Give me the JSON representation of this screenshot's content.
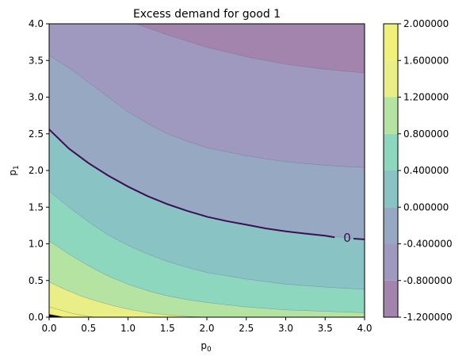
{
  "chart_data": {
    "type": "contour",
    "title": "Excess demand for good 1",
    "xlabel": "p",
    "xlabel_sub": "0",
    "ylabel": "p",
    "ylabel_sub": "1",
    "xlim": [
      0.0,
      4.0
    ],
    "ylim": [
      0.0,
      4.0
    ],
    "xticks": [
      "0.0",
      "0.5",
      "1.0",
      "1.5",
      "2.0",
      "2.5",
      "3.0",
      "3.5",
      "4.0"
    ],
    "yticks": [
      "0.0",
      "0.5",
      "1.0",
      "1.5",
      "2.0",
      "2.5",
      "3.0",
      "3.5",
      "4.0"
    ],
    "colorbar": {
      "levels": [
        -1.2,
        -0.8,
        -0.4,
        0.0,
        0.4,
        0.8,
        1.2,
        1.6,
        2.0
      ],
      "labels": [
        "2.000000",
        "1.600000",
        "1.200000",
        "0.800000",
        "0.400000",
        "0.000000",
        "-0.400000",
        "-0.800000",
        "-1.200000"
      ],
      "colors": [
        "#a284ac",
        "#9f99bf",
        "#97a9c2",
        "#8ac3c4",
        "#8dd7bf",
        "#b5e3a2",
        "#e9ee86",
        "#f0f07a"
      ]
    },
    "zero_contour": {
      "label": "0",
      "color": "#3b0f54",
      "points": [
        [
          0.0,
          2.56
        ],
        [
          0.25,
          2.3
        ],
        [
          0.5,
          2.1
        ],
        [
          0.75,
          1.93
        ],
        [
          1.0,
          1.78
        ],
        [
          1.25,
          1.65
        ],
        [
          1.5,
          1.54
        ],
        [
          1.75,
          1.45
        ],
        [
          2.0,
          1.37
        ],
        [
          2.25,
          1.31
        ],
        [
          2.5,
          1.26
        ],
        [
          2.75,
          1.21
        ],
        [
          3.0,
          1.17
        ],
        [
          3.25,
          1.14
        ],
        [
          3.5,
          1.11
        ],
        [
          3.62,
          1.09
        ]
      ],
      "tail": [
        [
          3.86,
          1.07
        ],
        [
          4.0,
          1.06
        ]
      ]
    },
    "contours": [
      {
        "range": [
          -1.2,
          -0.8
        ],
        "points": [
          [
            1.1,
            4.0
          ],
          [
            1.5,
            3.85
          ],
          [
            2.0,
            3.68
          ],
          [
            2.5,
            3.55
          ],
          [
            3.0,
            3.45
          ],
          [
            3.5,
            3.38
          ],
          [
            4.0,
            3.33
          ]
        ]
      },
      {
        "range": [
          -0.8,
          -0.4
        ],
        "points": [
          [
            0.0,
            3.57
          ],
          [
            0.25,
            3.4
          ],
          [
            0.5,
            3.2
          ],
          [
            0.75,
            3.0
          ],
          [
            1.0,
            2.8
          ],
          [
            1.25,
            2.64
          ],
          [
            1.5,
            2.5
          ],
          [
            1.75,
            2.4
          ],
          [
            2.0,
            2.31
          ],
          [
            2.5,
            2.2
          ],
          [
            3.0,
            2.12
          ],
          [
            3.5,
            2.07
          ],
          [
            4.0,
            2.04
          ]
        ]
      },
      {
        "range": [
          -0.4,
          0.0
        ],
        "points": [
          [
            0.0,
            2.56
          ],
          [
            0.25,
            2.3
          ],
          [
            0.5,
            2.1
          ],
          [
            0.75,
            1.93
          ],
          [
            1.0,
            1.78
          ],
          [
            1.25,
            1.65
          ],
          [
            1.5,
            1.54
          ],
          [
            1.75,
            1.45
          ],
          [
            2.0,
            1.37
          ],
          [
            2.25,
            1.31
          ],
          [
            2.5,
            1.26
          ],
          [
            2.75,
            1.21
          ],
          [
            3.0,
            1.17
          ],
          [
            3.25,
            1.14
          ],
          [
            3.5,
            1.11
          ],
          [
            4.0,
            1.06
          ]
        ]
      },
      {
        "range": [
          0.0,
          0.4
        ],
        "points": [
          [
            0.0,
            1.72
          ],
          [
            0.25,
            1.5
          ],
          [
            0.5,
            1.3
          ],
          [
            0.75,
            1.12
          ],
          [
            1.0,
            0.98
          ],
          [
            1.25,
            0.86
          ],
          [
            1.5,
            0.76
          ],
          [
            1.75,
            0.68
          ],
          [
            2.0,
            0.61
          ],
          [
            2.5,
            0.52
          ],
          [
            3.0,
            0.45
          ],
          [
            3.5,
            0.41
          ],
          [
            4.0,
            0.38
          ]
        ]
      },
      {
        "range": [
          0.4,
          0.8
        ],
        "points": [
          [
            0.0,
            1.04
          ],
          [
            0.25,
            0.86
          ],
          [
            0.5,
            0.7
          ],
          [
            0.75,
            0.56
          ],
          [
            1.0,
            0.45
          ],
          [
            1.25,
            0.36
          ],
          [
            1.5,
            0.29
          ],
          [
            1.75,
            0.24
          ],
          [
            2.0,
            0.2
          ],
          [
            2.5,
            0.14
          ],
          [
            3.0,
            0.1
          ],
          [
            3.5,
            0.08
          ],
          [
            4.0,
            0.06
          ]
        ]
      },
      {
        "range": [
          0.8,
          1.2
        ],
        "points": [
          [
            0.0,
            0.48
          ],
          [
            0.2,
            0.38
          ],
          [
            0.4,
            0.29
          ],
          [
            0.6,
            0.22
          ],
          [
            0.8,
            0.16
          ],
          [
            1.0,
            0.11
          ],
          [
            1.25,
            0.06
          ],
          [
            1.5,
            0.03
          ],
          [
            1.75,
            0.01
          ],
          [
            2.0,
            0.0
          ]
        ]
      },
      {
        "range": [
          1.2,
          1.6
        ],
        "points": [
          [
            0.0,
            0.14
          ],
          [
            0.1,
            0.11
          ],
          [
            0.2,
            0.08
          ],
          [
            0.3,
            0.05
          ],
          [
            0.4,
            0.03
          ],
          [
            0.5,
            0.01
          ],
          [
            0.6,
            0.0
          ]
        ]
      },
      {
        "range": [
          1.6,
          2.0
        ],
        "points": [
          [
            0.0,
            0.04
          ],
          [
            0.05,
            0.03
          ],
          [
            0.1,
            0.02
          ],
          [
            0.15,
            0.01
          ],
          [
            0.2,
            0.0
          ]
        ]
      }
    ]
  }
}
